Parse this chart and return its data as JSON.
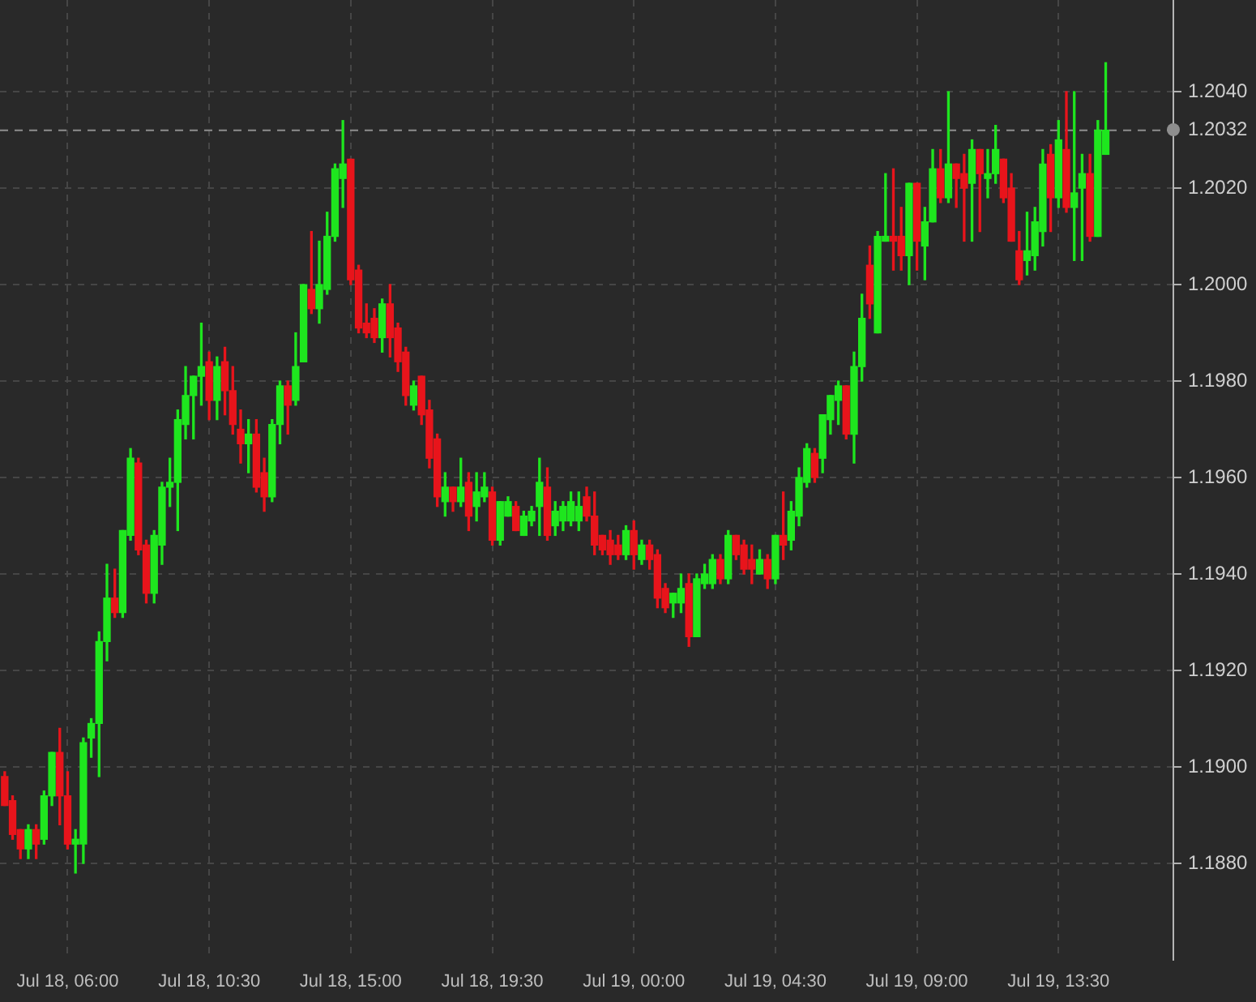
{
  "chart_data": {
    "type": "candlestick",
    "x": [
      "--07-18T04:00",
      "--07-18T04:15",
      "--07-18T04:30",
      "--07-18T04:45",
      "--07-18T05:00",
      "--07-18T05:15",
      "--07-18T05:30",
      "--07-18T05:45",
      "--07-18T06:00",
      "--07-18T06:15",
      "--07-18T06:30",
      "--07-18T06:45",
      "--07-18T07:00",
      "--07-18T07:15",
      "--07-18T07:30",
      "--07-18T07:45",
      "--07-18T08:00",
      "--07-18T08:15",
      "--07-18T08:30",
      "--07-18T08:45",
      "--07-18T09:00",
      "--07-18T09:15",
      "--07-18T09:30",
      "--07-18T09:45",
      "--07-18T10:00",
      "--07-18T10:15",
      "--07-18T10:30",
      "--07-18T10:45",
      "--07-18T11:00",
      "--07-18T11:15",
      "--07-18T11:30",
      "--07-18T11:45",
      "--07-18T12:00",
      "--07-18T12:15",
      "--07-18T12:30",
      "--07-18T12:45",
      "--07-18T13:00",
      "--07-18T13:15",
      "--07-18T13:30",
      "--07-18T13:45",
      "--07-18T14:00",
      "--07-18T14:15",
      "--07-18T14:30",
      "--07-18T14:45",
      "--07-18T15:00",
      "--07-18T15:15",
      "--07-18T15:30",
      "--07-18T15:45",
      "--07-18T16:00",
      "--07-18T16:15",
      "--07-18T16:30",
      "--07-18T16:45",
      "--07-18T17:00",
      "--07-18T17:15",
      "--07-18T17:30",
      "--07-18T17:45",
      "--07-18T18:00",
      "--07-18T18:15",
      "--07-18T18:30",
      "--07-18T18:45",
      "--07-18T19:00",
      "--07-18T19:15",
      "--07-18T19:30",
      "--07-18T19:45",
      "--07-18T20:00",
      "--07-18T20:15",
      "--07-18T20:30",
      "--07-18T20:45",
      "--07-18T21:00",
      "--07-18T21:15",
      "--07-18T21:30",
      "--07-18T21:45",
      "--07-18T22:00",
      "--07-18T22:15",
      "--07-18T22:30",
      "--07-18T22:45",
      "--07-18T23:00",
      "--07-18T23:15",
      "--07-18T23:30",
      "--07-18T23:45",
      "--07-19T00:00",
      "--07-19T00:15",
      "--07-19T00:30",
      "--07-19T00:45",
      "--07-19T01:00",
      "--07-19T01:15",
      "--07-19T01:30",
      "--07-19T01:45",
      "--07-19T02:00",
      "--07-19T02:15",
      "--07-19T02:30",
      "--07-19T02:45",
      "--07-19T03:00",
      "--07-19T03:15",
      "--07-19T03:30",
      "--07-19T03:45",
      "--07-19T04:00",
      "--07-19T04:15",
      "--07-19T04:30",
      "--07-19T04:45",
      "--07-19T05:00",
      "--07-19T05:15",
      "--07-19T05:30",
      "--07-19T05:45",
      "--07-19T06:00",
      "--07-19T06:15",
      "--07-19T06:30",
      "--07-19T06:45",
      "--07-19T07:00",
      "--07-19T07:15",
      "--07-19T07:30",
      "--07-19T07:45",
      "--07-19T08:00",
      "--07-19T08:15",
      "--07-19T08:30",
      "--07-19T08:45",
      "--07-19T09:00",
      "--07-19T09:15",
      "--07-19T09:30",
      "--07-19T09:45",
      "--07-19T10:00",
      "--07-19T10:15",
      "--07-19T10:30",
      "--07-19T10:45",
      "--07-19T11:00",
      "--07-19T11:15",
      "--07-19T11:30",
      "--07-19T11:45",
      "--07-19T12:00",
      "--07-19T12:15",
      "--07-19T12:30",
      "--07-19T12:45",
      "--07-19T13:00",
      "--07-19T13:15",
      "--07-19T13:30",
      "--07-19T13:45",
      "--07-19T14:00",
      "--07-19T14:15",
      "--07-19T14:30",
      "--07-19T14:45",
      "--07-19T15:00"
    ],
    "ohlc": [
      [
        1.1898,
        1.1899,
        1.1892,
        1.1892
      ],
      [
        1.1893,
        1.1894,
        1.1885,
        1.1886
      ],
      [
        1.1887,
        1.1887,
        1.1881,
        1.1883
      ],
      [
        1.1883,
        1.1888,
        1.1881,
        1.1887
      ],
      [
        1.1887,
        1.1888,
        1.1881,
        1.1884
      ],
      [
        1.1885,
        1.1895,
        1.1884,
        1.1894
      ],
      [
        1.1894,
        1.1903,
        1.1892,
        1.1903
      ],
      [
        1.1903,
        1.1908,
        1.1888,
        1.1894
      ],
      [
        1.1894,
        1.1899,
        1.1883,
        1.1884
      ],
      [
        1.1884,
        1.1887,
        1.1878,
        1.1885
      ],
      [
        1.1884,
        1.1906,
        1.188,
        1.1905
      ],
      [
        1.1906,
        1.191,
        1.1902,
        1.1909
      ],
      [
        1.1909,
        1.1928,
        1.1898,
        1.1926
      ],
      [
        1.1926,
        1.1942,
        1.1922,
        1.1935
      ],
      [
        1.1935,
        1.1941,
        1.1931,
        1.1932
      ],
      [
        1.1932,
        1.1949,
        1.1931,
        1.1949
      ],
      [
        1.1948,
        1.1966,
        1.1947,
        1.1964
      ],
      [
        1.1963,
        1.1964,
        1.1944,
        1.1945
      ],
      [
        1.1946,
        1.1947,
        1.1934,
        1.1936
      ],
      [
        1.1936,
        1.1949,
        1.1934,
        1.1948
      ],
      [
        1.1946,
        1.1959,
        1.1942,
        1.1958
      ],
      [
        1.1958,
        1.1964,
        1.1954,
        1.1959
      ],
      [
        1.1959,
        1.1974,
        1.1949,
        1.1972
      ],
      [
        1.1971,
        1.1983,
        1.1968,
        1.1977
      ],
      [
        1.1977,
        1.1981,
        1.1968,
        1.1981
      ],
      [
        1.1981,
        1.1992,
        1.1975,
        1.1983
      ],
      [
        1.1984,
        1.1986,
        1.1972,
        1.1976
      ],
      [
        1.1976,
        1.1985,
        1.1972,
        1.1983
      ],
      [
        1.1984,
        1.1987,
        1.1973,
        1.1978
      ],
      [
        1.1978,
        1.1983,
        1.1969,
        1.1971
      ],
      [
        1.197,
        1.1974,
        1.1963,
        1.1967
      ],
      [
        1.1967,
        1.1972,
        1.1961,
        1.1969
      ],
      [
        1.1969,
        1.1972,
        1.1957,
        1.1958
      ],
      [
        1.1961,
        1.1964,
        1.1953,
        1.1956
      ],
      [
        1.1956,
        1.1972,
        1.1955,
        1.1971
      ],
      [
        1.1971,
        1.198,
        1.1967,
        1.1979
      ],
      [
        1.1979,
        1.198,
        1.1969,
        1.1975
      ],
      [
        1.1976,
        1.199,
        1.1975,
        1.1983
      ],
      [
        1.1984,
        1.2,
        1.1984,
        1.2
      ],
      [
        1.1999,
        1.2011,
        1.1994,
        1.1995
      ],
      [
        1.1995,
        1.2009,
        1.1992,
        1.2
      ],
      [
        1.1999,
        1.2015,
        1.1998,
        1.201
      ],
      [
        1.201,
        1.2025,
        1.2009,
        1.2024
      ],
      [
        1.2022,
        1.2034,
        1.2016,
        1.2025
      ],
      [
        1.2026,
        1.2026,
        1.2,
        1.2001
      ],
      [
        1.2003,
        1.2004,
        1.199,
        1.1991
      ],
      [
        1.1992,
        1.1996,
        1.1989,
        1.199
      ],
      [
        1.1993,
        1.1995,
        1.1988,
        1.1989
      ],
      [
        1.1989,
        1.1997,
        1.1986,
        1.1996
      ],
      [
        1.1996,
        1.2,
        1.1985,
        1.1989
      ],
      [
        1.1991,
        1.1992,
        1.1982,
        1.1984
      ],
      [
        1.1986,
        1.1987,
        1.1975,
        1.1977
      ],
      [
        1.1975,
        1.198,
        1.1974,
        1.1979
      ],
      [
        1.1981,
        1.1981,
        1.1971,
        1.1973
      ],
      [
        1.1974,
        1.1976,
        1.1962,
        1.1964
      ],
      [
        1.1968,
        1.1969,
        1.1954,
        1.1956
      ],
      [
        1.1955,
        1.1961,
        1.1952,
        1.1958
      ],
      [
        1.1958,
        1.1958,
        1.1953,
        1.1955
      ],
      [
        1.1955,
        1.1964,
        1.1954,
        1.1958
      ],
      [
        1.1959,
        1.1961,
        1.1949,
        1.1952
      ],
      [
        1.1954,
        1.1961,
        1.1951,
        1.1957
      ],
      [
        1.1956,
        1.1961,
        1.1955,
        1.1958
      ],
      [
        1.1957,
        1.1958,
        1.1946,
        1.1947
      ],
      [
        1.1947,
        1.1955,
        1.1946,
        1.1955
      ],
      [
        1.1952,
        1.1956,
        1.1952,
        1.1955
      ],
      [
        1.1954,
        1.1955,
        1.1949,
        1.1949
      ],
      [
        1.1948,
        1.1953,
        1.1948,
        1.1952
      ],
      [
        1.1951,
        1.1954,
        1.195,
        1.1953
      ],
      [
        1.1954,
        1.1964,
        1.1948,
        1.1959
      ],
      [
        1.1958,
        1.1962,
        1.1947,
        1.1948
      ],
      [
        1.195,
        1.1955,
        1.1948,
        1.1953
      ],
      [
        1.1951,
        1.1955,
        1.1949,
        1.1954
      ],
      [
        1.1951,
        1.1957,
        1.195,
        1.1955
      ],
      [
        1.1951,
        1.1957,
        1.1949,
        1.1954
      ],
      [
        1.1956,
        1.1958,
        1.1951,
        1.1952
      ],
      [
        1.1952,
        1.1957,
        1.1944,
        1.1946
      ],
      [
        1.1948,
        1.1948,
        1.1944,
        1.1945
      ],
      [
        1.1947,
        1.1949,
        1.1942,
        1.1944
      ],
      [
        1.1946,
        1.1948,
        1.1943,
        1.1944
      ],
      [
        1.1944,
        1.195,
        1.1943,
        1.1949
      ],
      [
        1.1949,
        1.1951,
        1.1941,
        1.1944
      ],
      [
        1.1943,
        1.1947,
        1.1942,
        1.1946
      ],
      [
        1.1946,
        1.1947,
        1.1941,
        1.1943
      ],
      [
        1.1944,
        1.1945,
        1.1933,
        1.1935
      ],
      [
        1.1937,
        1.1938,
        1.1932,
        1.1933
      ],
      [
        1.1934,
        1.1936,
        1.1931,
        1.1936
      ],
      [
        1.1934,
        1.194,
        1.1932,
        1.1937
      ],
      [
        1.1938,
        1.194,
        1.1925,
        1.1927
      ],
      [
        1.1927,
        1.194,
        1.1927,
        1.1939
      ],
      [
        1.1938,
        1.1942,
        1.1937,
        1.194
      ],
      [
        1.1938,
        1.1944,
        1.1937,
        1.1943
      ],
      [
        1.1943,
        1.1944,
        1.1938,
        1.1939
      ],
      [
        1.1939,
        1.1949,
        1.1938,
        1.1948
      ],
      [
        1.1948,
        1.1948,
        1.1943,
        1.1944
      ],
      [
        1.1946,
        1.1947,
        1.194,
        1.1941
      ],
      [
        1.1943,
        1.1946,
        1.1938,
        1.1941
      ],
      [
        1.194,
        1.1945,
        1.194,
        1.1943
      ],
      [
        1.1943,
        1.1944,
        1.1937,
        1.1939
      ],
      [
        1.1939,
        1.1948,
        1.1938,
        1.1948
      ],
      [
        1.1948,
        1.1957,
        1.1943,
        1.1946
      ],
      [
        1.1947,
        1.1955,
        1.1945,
        1.1953
      ],
      [
        1.1952,
        1.1962,
        1.195,
        1.196
      ],
      [
        1.1959,
        1.1967,
        1.1958,
        1.1966
      ],
      [
        1.1965,
        1.1966,
        1.1959,
        1.196
      ],
      [
        1.1964,
        1.1973,
        1.1961,
        1.1973
      ],
      [
        1.1972,
        1.1977,
        1.1969,
        1.1977
      ],
      [
        1.1976,
        1.198,
        1.1971,
        1.1979
      ],
      [
        1.1979,
        1.1979,
        1.1968,
        1.1969
      ],
      [
        1.1969,
        1.1986,
        1.1963,
        1.1983
      ],
      [
        1.1983,
        1.1998,
        1.198,
        1.1993
      ],
      [
        1.2004,
        1.2008,
        1.1993,
        1.1996
      ],
      [
        1.199,
        1.2011,
        1.199,
        1.201
      ],
      [
        1.2009,
        1.2023,
        1.2009,
        1.201
      ],
      [
        1.201,
        1.2024,
        1.2003,
        1.2009
      ],
      [
        1.201,
        1.2016,
        1.2003,
        1.2006
      ],
      [
        1.2006,
        1.2021,
        1.2,
        1.2021
      ],
      [
        1.2021,
        1.2021,
        1.2003,
        1.2009
      ],
      [
        1.2008,
        1.2016,
        1.2001,
        1.2013
      ],
      [
        1.2013,
        1.2028,
        1.2013,
        1.2024
      ],
      [
        1.2024,
        1.2028,
        1.2017,
        1.2018
      ],
      [
        1.2018,
        1.204,
        1.2017,
        1.2025
      ],
      [
        1.2025,
        1.2025,
        1.2016,
        1.2022
      ],
      [
        1.2023,
        1.2027,
        1.2009,
        1.202
      ],
      [
        1.2021,
        1.203,
        1.2009,
        1.2028
      ],
      [
        1.2028,
        1.2028,
        1.2011,
        1.2023
      ],
      [
        1.2022,
        1.2028,
        1.2018,
        1.2023
      ],
      [
        1.2023,
        1.2033,
        1.2021,
        1.2028
      ],
      [
        1.2026,
        1.2026,
        1.2017,
        1.2018
      ],
      [
        1.202,
        1.2023,
        1.2009,
        1.2009
      ],
      [
        1.2007,
        1.2011,
        1.2,
        1.2001
      ],
      [
        1.2005,
        1.2015,
        1.2002,
        1.2007
      ],
      [
        1.2006,
        1.2016,
        1.2003,
        1.2013
      ],
      [
        1.2011,
        1.2028,
        1.2008,
        1.2025
      ],
      [
        1.2027,
        1.2029,
        1.2011,
        1.2018
      ],
      [
        1.2018,
        1.2034,
        1.2016,
        1.203
      ],
      [
        1.2028,
        1.204,
        1.2015,
        1.2016
      ],
      [
        1.2016,
        1.204,
        1.2005,
        1.2019
      ],
      [
        1.202,
        1.2027,
        1.2005,
        1.2023
      ],
      [
        1.2023,
        1.2027,
        1.2009,
        1.201
      ],
      [
        1.201,
        1.2034,
        1.201,
        1.2032
      ],
      [
        1.2027,
        1.2046,
        1.2027,
        1.2032
      ]
    ],
    "xlim": [
      "--07-18T03:51",
      "--07-19T17:09"
    ],
    "xticks": [
      {
        "value": "--07-18T06:00",
        "label": "Jul 18, 06:00"
      },
      {
        "value": "--07-18T10:30",
        "label": "Jul 18, 10:30"
      },
      {
        "value": "--07-18T15:00",
        "label": "Jul 18, 15:00"
      },
      {
        "value": "--07-18T19:30",
        "label": "Jul 18, 19:30"
      },
      {
        "value": "--07-19T00:00",
        "label": "Jul 19, 00:00"
      },
      {
        "value": "--07-19T04:30",
        "label": "Jul 19, 04:30"
      },
      {
        "value": "--07-19T09:00",
        "label": "Jul 19, 09:00"
      },
      {
        "value": "--07-19T13:30",
        "label": "Jul 19, 13:30"
      }
    ],
    "ylim": [
      1.186,
      1.2059
    ],
    "yticks": [
      {
        "value": 1.188,
        "label": "1.1880"
      },
      {
        "value": 1.19,
        "label": "1.1900"
      },
      {
        "value": 1.192,
        "label": "1.1920"
      },
      {
        "value": 1.194,
        "label": "1.1940"
      },
      {
        "value": 1.196,
        "label": "1.1960"
      },
      {
        "value": 1.198,
        "label": "1.1980"
      },
      {
        "value": 1.2,
        "label": "1.2000"
      },
      {
        "value": 1.202,
        "label": "1.2020"
      },
      {
        "value": 1.204,
        "label": "1.2040"
      }
    ],
    "grid": true,
    "ref_lines": [
      {
        "axis": "y",
        "value": 1.2032,
        "label": "1.2032",
        "color": "#8e8e8e",
        "line_style": "dashed"
      }
    ]
  }
}
